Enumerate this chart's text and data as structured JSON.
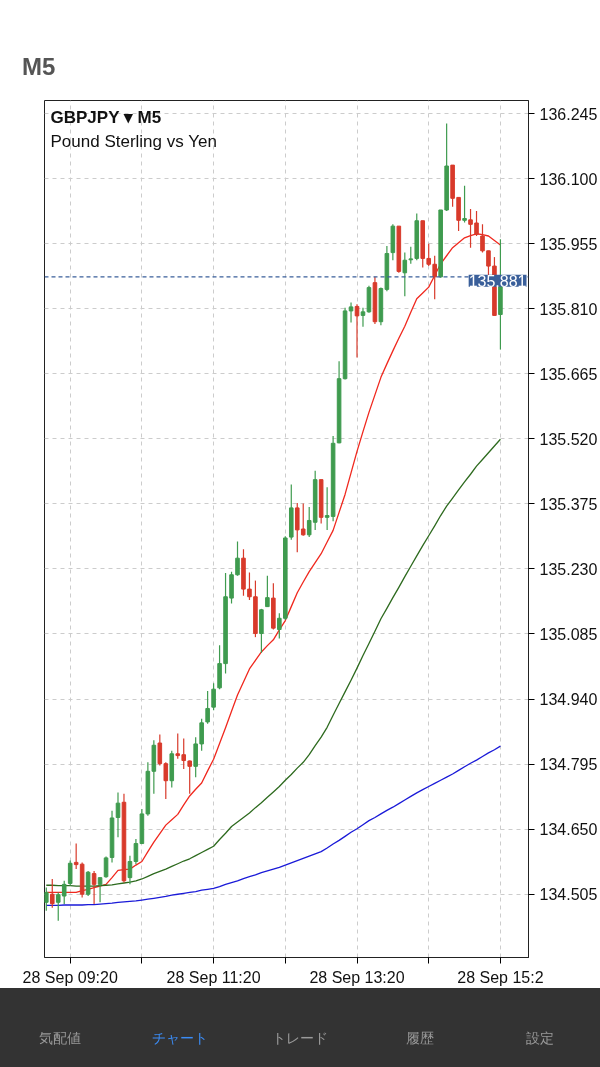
{
  "chart_data": {
    "type": "candlestick",
    "title": "GBPJPY ▾ M5",
    "subtitle": "Pound Sterling vs Yen",
    "annotations": [
      "M5",
      "気配値",
      "チャート",
      "トレード",
      "履歴",
      "設定"
    ],
    "categories": [
      null,
      null,
      null,
      null,
      "28 Sep 09:20",
      null,
      null,
      null,
      null,
      null,
      null,
      null,
      null,
      null,
      null,
      null,
      null,
      null,
      null,
      null,
      null,
      null,
      null,
      null,
      null,
      null,
      null,
      null,
      "28 Sep 11:20",
      null,
      null,
      null,
      null,
      null,
      null,
      null,
      null,
      null,
      null,
      null,
      null,
      null,
      null,
      null,
      null,
      null,
      null,
      null,
      null,
      null,
      null,
      null,
      "28 Sep 13:20",
      null,
      null,
      null,
      null,
      null,
      null,
      null,
      null,
      null,
      null,
      null,
      null,
      null,
      null,
      null,
      null,
      null,
      null,
      null,
      null,
      null,
      null,
      null,
      "28 Sep 15:2"
    ],
    "ohlc": [
      [
        134.487,
        134.52,
        134.468,
        134.509
      ],
      [
        134.505,
        134.539,
        134.475,
        134.484
      ],
      [
        134.487,
        134.509,
        134.446,
        134.504
      ],
      [
        134.501,
        134.535,
        134.483,
        134.527
      ],
      [
        134.529,
        134.58,
        134.524,
        134.574
      ],
      [
        134.576,
        134.618,
        134.561,
        134.571
      ],
      [
        134.572,
        134.576,
        134.498,
        134.505
      ],
      [
        134.505,
        134.557,
        134.501,
        134.554
      ],
      [
        134.551,
        134.557,
        134.483,
        134.527
      ],
      [
        134.527,
        134.542,
        134.487,
        134.542
      ],
      [
        134.544,
        134.589,
        134.542,
        134.586
      ],
      [
        134.587,
        134.691,
        134.576,
        134.675
      ],
      [
        134.676,
        134.732,
        134.632,
        134.708
      ],
      [
        134.71,
        134.729,
        134.531,
        134.535
      ],
      [
        134.542,
        134.591,
        134.527,
        134.578
      ],
      [
        134.578,
        134.628,
        134.572,
        134.618
      ],
      [
        134.618,
        134.695,
        134.617,
        134.684
      ],
      [
        134.684,
        134.799,
        134.68,
        134.779
      ],
      [
        134.779,
        134.848,
        134.729,
        134.837
      ],
      [
        134.842,
        134.861,
        134.792,
        134.796
      ],
      [
        134.796,
        134.799,
        134.717,
        134.758
      ],
      [
        134.758,
        134.825,
        134.743,
        134.818
      ],
      [
        134.818,
        134.863,
        134.807,
        134.814
      ],
      [
        134.816,
        134.852,
        134.784,
        134.803
      ],
      [
        134.802,
        134.803,
        134.729,
        134.79
      ],
      [
        134.79,
        134.855,
        134.766,
        134.84
      ],
      [
        134.84,
        134.896,
        134.825,
        134.887
      ],
      [
        134.889,
        134.958,
        134.885,
        134.919
      ],
      [
        134.922,
        134.975,
        134.915,
        134.962
      ],
      [
        134.965,
        135.06,
        134.962,
        135.019
      ],
      [
        135.019,
        135.221,
        134.997,
        135.168
      ],
      [
        135.165,
        135.224,
        135.153,
        135.217
      ],
      [
        135.217,
        135.291,
        135.215,
        135.254
      ],
      [
        135.254,
        135.274,
        135.17,
        135.185
      ],
      [
        135.185,
        135.222,
        135.161,
        135.168
      ],
      [
        135.168,
        135.204,
        135.078,
        135.086
      ],
      [
        135.086,
        135.141,
        135.043,
        135.139
      ],
      [
        135.146,
        135.215,
        135.145,
        135.166
      ],
      [
        135.165,
        135.198,
        135.095,
        135.098
      ],
      [
        135.095,
        135.131,
        135.075,
        135.12
      ],
      [
        135.12,
        135.303,
        135.116,
        135.299
      ],
      [
        135.301,
        135.418,
        135.295,
        135.366
      ],
      [
        135.366,
        135.377,
        135.267,
        135.317
      ],
      [
        135.319,
        135.376,
        135.304,
        135.306
      ],
      [
        135.306,
        135.368,
        135.301,
        135.338
      ],
      [
        135.334,
        135.449,
        135.317,
        135.429
      ],
      [
        135.429,
        135.429,
        135.331,
        135.345
      ],
      [
        135.345,
        135.412,
        135.317,
        135.349
      ],
      [
        135.347,
        135.526,
        135.336,
        135.51
      ],
      [
        135.511,
        135.693,
        135.51,
        135.654
      ],
      [
        135.654,
        135.812,
        135.652,
        135.805
      ],
      [
        135.805,
        135.824,
        135.779,
        135.814
      ],
      [
        135.815,
        135.82,
        135.701,
        135.794
      ],
      [
        135.795,
        135.812,
        135.77,
        135.803
      ],
      [
        135.803,
        135.861,
        135.801,
        135.857
      ],
      [
        135.868,
        135.881,
        135.776,
        135.781
      ],
      [
        135.781,
        135.857,
        135.773,
        135.855
      ],
      [
        135.853,
        135.95,
        135.849,
        135.933
      ],
      [
        135.935,
        135.998,
        135.918,
        135.994
      ],
      [
        135.994,
        135.994,
        135.89,
        135.893
      ],
      [
        135.89,
        135.935,
        135.838,
        135.918
      ],
      [
        135.919,
        135.948,
        135.91,
        135.921
      ],
      [
        135.922,
        136.022,
        135.918,
        136.006
      ],
      [
        136.006,
        136.006,
        135.902,
        135.922
      ],
      [
        135.922,
        135.955,
        135.905,
        135.909
      ],
      [
        135.909,
        135.928,
        135.831,
        135.881
      ],
      [
        135.881,
        136.03,
        135.879,
        136.03
      ],
      [
        136.03,
        136.223,
        136.028,
        136.128
      ],
      [
        136.13,
        136.13,
        136.037,
        136.056
      ],
      [
        136.058,
        136.058,
        135.983,
        136.007
      ],
      [
        136.007,
        136.084,
        136.002,
        136.011
      ],
      [
        136.008,
        136.032,
        135.946,
        135.998
      ],
      [
        136.001,
        136.028,
        135.972,
        135.976
      ],
      [
        135.972,
        135.998,
        135.935,
        135.939
      ],
      [
        135.939,
        135.939,
        135.879,
        135.905
      ],
      [
        135.905,
        135.925,
        135.795,
        135.795
      ],
      [
        135.797,
        135.965,
        135.719,
        135.881
      ]
    ],
    "colors": [
      "#3f9b4f",
      "#d83a2b",
      "#3f9b4f",
      "#3f9b4f",
      "#3f9b4f",
      "#d83a2b",
      "#d83a2b",
      "#3f9b4f",
      "#d83a2b",
      "#3f9b4f",
      "#3f9b4f",
      "#3f9b4f",
      "#3f9b4f",
      "#d83a2b",
      "#3f9b4f",
      "#3f9b4f",
      "#3f9b4f",
      "#3f9b4f",
      "#3f9b4f",
      "#d83a2b",
      "#d83a2b",
      "#3f9b4f",
      "#d83a2b",
      "#d83a2b",
      "#d83a2b",
      "#3f9b4f",
      "#3f9b4f",
      "#3f9b4f",
      "#3f9b4f",
      "#3f9b4f",
      "#3f9b4f",
      "#3f9b4f",
      "#3f9b4f",
      "#d83a2b",
      "#d83a2b",
      "#d83a2b",
      "#3f9b4f",
      "#3f9b4f",
      "#d83a2b",
      "#3f9b4f",
      "#3f9b4f",
      "#3f9b4f",
      "#d83a2b",
      "#d83a2b",
      "#3f9b4f",
      "#3f9b4f",
      "#d83a2b",
      "#3f9b4f",
      "#3f9b4f",
      "#3f9b4f",
      "#3f9b4f",
      "#3f9b4f",
      "#d83a2b",
      "#3f9b4f",
      "#3f9b4f",
      "#d83a2b",
      "#3f9b4f",
      "#3f9b4f",
      "#3f9b4f",
      "#d83a2b",
      "#3f9b4f",
      "#3f9b4f",
      "#3f9b4f",
      "#d83a2b",
      "#d83a2b",
      "#d83a2b",
      "#3f9b4f",
      "#3f9b4f",
      "#d83a2b",
      "#d83a2b",
      "#3f9b4f",
      "#d83a2b",
      "#d83a2b",
      "#d83a2b",
      "#d83a2b",
      "#d83a2b",
      "#3f9b4f"
    ],
    "series": [
      {
        "type": "line",
        "color": "#f0281e",
        "values": [
          134.509,
          134.509,
          134.509,
          134.509,
          134.509,
          134.509,
          134.513,
          134.516,
          134.52,
          134.523,
          134.527,
          134.542,
          134.558,
          134.56,
          134.561,
          134.57,
          134.578,
          134.6,
          134.621,
          134.64,
          134.659,
          134.671,
          134.683,
          134.704,
          134.724,
          134.739,
          134.753,
          134.78,
          134.806,
          134.841,
          134.876,
          134.913,
          134.949,
          134.978,
          135.007,
          135.026,
          135.045,
          135.059,
          135.072,
          135.094,
          135.115,
          135.146,
          135.177,
          135.201,
          135.224,
          135.244,
          135.264,
          135.29,
          135.316,
          135.356,
          135.396,
          135.444,
          135.492,
          135.536,
          135.579,
          135.618,
          135.657,
          135.687,
          135.716,
          135.744,
          135.771,
          135.802,
          135.832,
          135.845,
          135.858,
          135.884,
          135.91,
          135.928,
          135.946,
          135.957,
          135.968,
          135.973,
          135.977,
          135.975,
          135.972,
          135.962,
          135.952
        ]
      },
      {
        "type": "line",
        "color": "#2d6a1e",
        "values": [
          134.525,
          134.525,
          134.524,
          134.524,
          134.524,
          134.523,
          134.523,
          134.523,
          134.523,
          134.524,
          134.525,
          134.526,
          134.528,
          134.53,
          134.532,
          134.535,
          134.539,
          134.545,
          134.551,
          134.556,
          134.561,
          134.567,
          134.573,
          134.579,
          134.584,
          134.591,
          134.598,
          134.605,
          134.612,
          134.627,
          134.641,
          134.656,
          134.666,
          134.676,
          134.686,
          134.698,
          134.709,
          134.721,
          134.733,
          134.745,
          134.759,
          134.772,
          134.786,
          134.799,
          134.816,
          134.836,
          134.855,
          134.877,
          134.904,
          134.93,
          134.956,
          134.982,
          135.009,
          135.037,
          135.064,
          135.091,
          135.119,
          135.142,
          135.166,
          135.189,
          135.213,
          135.236,
          135.259,
          135.282,
          135.304,
          135.326,
          135.349,
          135.37,
          135.388,
          135.406,
          135.424,
          135.441,
          135.459,
          135.474,
          135.489,
          135.504,
          135.519
        ]
      },
      {
        "type": "line",
        "color": "#1a1ad8",
        "values": [
          134.48,
          134.48,
          134.48,
          134.481,
          134.481,
          134.481,
          134.481,
          134.482,
          134.482,
          134.483,
          134.484,
          134.485,
          134.487,
          134.488,
          134.489,
          134.49,
          134.492,
          134.494,
          134.496,
          134.498,
          134.5,
          134.503,
          134.505,
          134.507,
          134.509,
          134.511,
          134.514,
          134.516,
          134.518,
          134.522,
          134.527,
          134.531,
          134.535,
          134.54,
          134.544,
          134.548,
          134.553,
          134.557,
          134.561,
          134.565,
          134.57,
          134.575,
          134.58,
          134.585,
          134.59,
          134.595,
          134.6,
          134.608,
          134.617,
          134.625,
          134.634,
          134.643,
          134.651,
          134.66,
          134.669,
          134.676,
          134.684,
          134.692,
          134.699,
          134.707,
          134.715,
          134.723,
          134.731,
          134.738,
          134.745,
          134.752,
          134.759,
          134.766,
          134.773,
          134.781,
          134.789,
          134.797,
          134.804,
          134.812,
          134.82,
          134.827,
          134.835
        ]
      }
    ],
    "ylim": [
      134.364,
      136.274
    ],
    "yticks": [
      134.505,
      {
        "value": 134.65,
        "label": "134.650"
      },
      134.795,
      {
        "value": 134.94,
        "label": "134.940"
      },
      135.085,
      {
        "value": 135.23,
        "label": "135.230"
      },
      135.375,
      {
        "value": 135.52,
        "label": "135.520"
      },
      135.665,
      {
        "value": 135.81,
        "label": "135.810"
      },
      135.955,
      {
        "value": 136.1,
        "label": "136.100"
      },
      136.245
    ],
    "ref_lines": [
      {
        "axis": "y",
        "value": 135.881,
        "label": "135.881",
        "color": "#3a5f9a",
        "line_style": "dashed"
      }
    ],
    "grid": true
  }
}
